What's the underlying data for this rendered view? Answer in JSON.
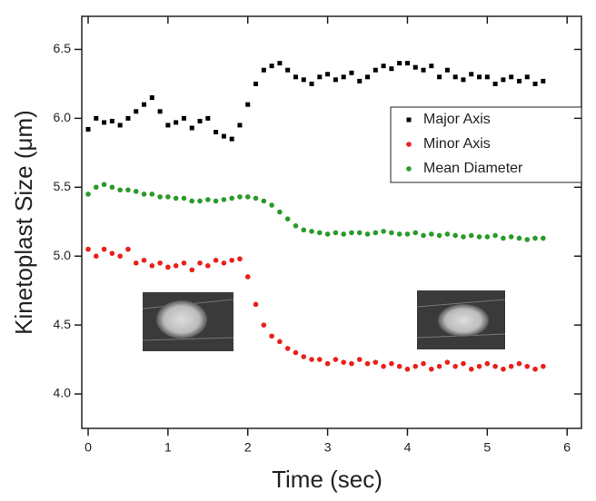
{
  "chart_data": {
    "type": "scatter",
    "x_label": "Time (sec)",
    "y_label": "Kinetoplast Size (μm)",
    "xlim": [
      -0.08,
      6.18
    ],
    "ylim": [
      3.75,
      6.74
    ],
    "xticks": [
      0,
      1,
      2,
      3,
      4,
      5,
      6
    ],
    "yticks": [
      {
        "value": 4,
        "label": "4.0"
      },
      4.5,
      {
        "value": 5,
        "label": "5.0"
      },
      5.5,
      {
        "value": 6,
        "label": "6.0"
      },
      6.5
    ],
    "legend": "upper right",
    "x": [
      0,
      0.1,
      0.2,
      0.3,
      0.4,
      0.5,
      0.6,
      0.7,
      0.8,
      0.9,
      1,
      1.1,
      1.2,
      1.3,
      1.4,
      1.5,
      1.6,
      1.7,
      1.8,
      1.9,
      2,
      2.1,
      2.2,
      2.3,
      2.4,
      2.5,
      2.6,
      2.7,
      2.8,
      2.9,
      3,
      3.1,
      3.2,
      3.3,
      3.4,
      3.5,
      3.6,
      3.7,
      3.8,
      3.9,
      4,
      4.1,
      4.2,
      4.3,
      4.4,
      4.5,
      4.6,
      4.7,
      4.8,
      4.9,
      5,
      5.1,
      5.2,
      5.3,
      5.4,
      5.5,
      5.6,
      5.7
    ],
    "series": [
      {
        "name": "Major Axis",
        "color": "#000000",
        "marker": "square",
        "values": [
          5.92,
          6.0,
          5.97,
          5.98,
          5.95,
          6.0,
          6.05,
          6.1,
          6.15,
          6.05,
          5.95,
          5.97,
          6.0,
          5.93,
          5.98,
          6.0,
          5.9,
          5.87,
          5.85,
          5.95,
          6.1,
          6.25,
          6.35,
          6.38,
          6.4,
          6.35,
          6.3,
          6.28,
          6.25,
          6.3,
          6.32,
          6.28,
          6.3,
          6.33,
          6.27,
          6.3,
          6.35,
          6.38,
          6.36,
          6.4,
          6.4,
          6.37,
          6.35,
          6.38,
          6.3,
          6.35,
          6.3,
          6.28,
          6.32,
          6.3,
          6.3,
          6.25,
          6.28,
          6.3,
          6.27,
          6.3,
          6.25,
          6.27
        ]
      },
      {
        "name": "Minor Axis",
        "color": "#e8201a",
        "marker": "circle",
        "values": [
          5.05,
          5.0,
          5.05,
          5.02,
          5.0,
          5.05,
          4.95,
          4.97,
          4.93,
          4.95,
          4.92,
          4.93,
          4.95,
          4.9,
          4.95,
          4.93,
          4.97,
          4.95,
          4.97,
          4.98,
          4.85,
          4.65,
          4.5,
          4.42,
          4.38,
          4.33,
          4.3,
          4.27,
          4.25,
          4.25,
          4.22,
          4.25,
          4.23,
          4.22,
          4.25,
          4.22,
          4.23,
          4.2,
          4.22,
          4.2,
          4.18,
          4.2,
          4.22,
          4.18,
          4.2,
          4.23,
          4.2,
          4.22,
          4.18,
          4.2,
          4.22,
          4.2,
          4.18,
          4.2,
          4.22,
          4.2,
          4.18,
          4.2
        ]
      },
      {
        "name": "Mean Diameter",
        "color": "#2a9a2a",
        "marker": "circle",
        "values": [
          5.45,
          5.5,
          5.52,
          5.5,
          5.48,
          5.48,
          5.47,
          5.45,
          5.45,
          5.43,
          5.43,
          5.42,
          5.42,
          5.4,
          5.4,
          5.41,
          5.4,
          5.41,
          5.42,
          5.43,
          5.43,
          5.42,
          5.4,
          5.37,
          5.32,
          5.27,
          5.22,
          5.19,
          5.18,
          5.17,
          5.16,
          5.17,
          5.16,
          5.17,
          5.17,
          5.16,
          5.17,
          5.18,
          5.17,
          5.16,
          5.16,
          5.17,
          5.15,
          5.16,
          5.15,
          5.16,
          5.15,
          5.14,
          5.15,
          5.14,
          5.14,
          5.15,
          5.13,
          5.14,
          5.13,
          5.12,
          5.13,
          5.13
        ]
      }
    ]
  }
}
